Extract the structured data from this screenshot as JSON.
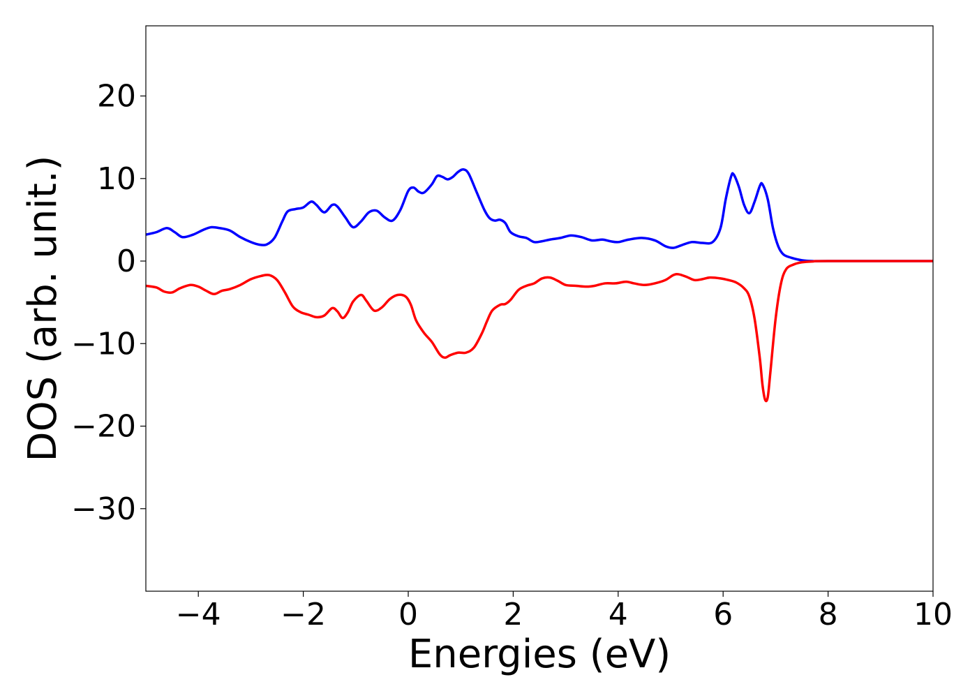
{
  "chart_data": {
    "type": "line",
    "title": "",
    "xlabel": "Energies (eV)",
    "ylabel": "DOS (arb. unit.)",
    "xlim": [
      -5,
      10
    ],
    "ylim": [
      -40,
      28.5
    ],
    "x_ticks": [
      -4,
      -2,
      0,
      2,
      4,
      6,
      8,
      10
    ],
    "y_ticks": [
      -30,
      -20,
      -10,
      0,
      10,
      20
    ],
    "x_tick_labels": [
      "−4",
      "−2",
      "0",
      "2",
      "4",
      "6",
      "8",
      "10"
    ],
    "y_tick_labels": [
      "−30",
      "−20",
      "−10",
      "0",
      "10",
      "20"
    ],
    "grid": false,
    "legend": false,
    "series": [
      {
        "color": "#0000ff",
        "points": [
          [
            -5.0,
            3.2
          ],
          [
            -4.8,
            3.5
          ],
          [
            -4.6,
            4.0
          ],
          [
            -4.45,
            3.5
          ],
          [
            -4.3,
            2.9
          ],
          [
            -4.1,
            3.2
          ],
          [
            -3.9,
            3.8
          ],
          [
            -3.75,
            4.1
          ],
          [
            -3.6,
            4.0
          ],
          [
            -3.4,
            3.7
          ],
          [
            -3.2,
            2.9
          ],
          [
            -3.0,
            2.3
          ],
          [
            -2.85,
            2.0
          ],
          [
            -2.7,
            2.0
          ],
          [
            -2.55,
            2.8
          ],
          [
            -2.4,
            4.8
          ],
          [
            -2.3,
            6.0
          ],
          [
            -2.15,
            6.3
          ],
          [
            -2.0,
            6.5
          ],
          [
            -1.85,
            7.2
          ],
          [
            -1.75,
            6.8
          ],
          [
            -1.6,
            5.9
          ],
          [
            -1.45,
            6.8
          ],
          [
            -1.35,
            6.6
          ],
          [
            -1.2,
            5.3
          ],
          [
            -1.05,
            4.1
          ],
          [
            -0.9,
            4.8
          ],
          [
            -0.75,
            5.9
          ],
          [
            -0.6,
            6.1
          ],
          [
            -0.45,
            5.3
          ],
          [
            -0.3,
            4.9
          ],
          [
            -0.15,
            6.2
          ],
          [
            0.0,
            8.5
          ],
          [
            0.1,
            8.9
          ],
          [
            0.2,
            8.4
          ],
          [
            0.3,
            8.3
          ],
          [
            0.45,
            9.3
          ],
          [
            0.55,
            10.3
          ],
          [
            0.65,
            10.2
          ],
          [
            0.75,
            9.9
          ],
          [
            0.85,
            10.2
          ],
          [
            0.95,
            10.8
          ],
          [
            1.05,
            11.1
          ],
          [
            1.15,
            10.6
          ],
          [
            1.3,
            8.4
          ],
          [
            1.45,
            6.2
          ],
          [
            1.55,
            5.2
          ],
          [
            1.65,
            4.9
          ],
          [
            1.75,
            5.0
          ],
          [
            1.85,
            4.6
          ],
          [
            1.95,
            3.5
          ],
          [
            2.1,
            3.0
          ],
          [
            2.25,
            2.8
          ],
          [
            2.4,
            2.3
          ],
          [
            2.55,
            2.4
          ],
          [
            2.7,
            2.6
          ],
          [
            2.9,
            2.8
          ],
          [
            3.1,
            3.1
          ],
          [
            3.3,
            2.9
          ],
          [
            3.5,
            2.5
          ],
          [
            3.7,
            2.6
          ],
          [
            3.85,
            2.4
          ],
          [
            4.0,
            2.3
          ],
          [
            4.2,
            2.6
          ],
          [
            4.45,
            2.8
          ],
          [
            4.7,
            2.5
          ],
          [
            4.9,
            1.8
          ],
          [
            5.05,
            1.6
          ],
          [
            5.2,
            1.9
          ],
          [
            5.4,
            2.3
          ],
          [
            5.6,
            2.2
          ],
          [
            5.8,
            2.3
          ],
          [
            5.95,
            4.0
          ],
          [
            6.05,
            7.5
          ],
          [
            6.15,
            10.2
          ],
          [
            6.2,
            10.5
          ],
          [
            6.3,
            9.0
          ],
          [
            6.4,
            6.8
          ],
          [
            6.5,
            5.8
          ],
          [
            6.6,
            7.2
          ],
          [
            6.7,
            9.1
          ],
          [
            6.75,
            9.3
          ],
          [
            6.85,
            7.5
          ],
          [
            6.95,
            4.0
          ],
          [
            7.05,
            1.8
          ],
          [
            7.15,
            0.8
          ],
          [
            7.3,
            0.4
          ],
          [
            7.5,
            0.1
          ],
          [
            7.7,
            0.0
          ],
          [
            8.0,
            0.0
          ],
          [
            10.0,
            0.0
          ]
        ]
      },
      {
        "color": "#ff0000",
        "points": [
          [
            -5.0,
            -3.0
          ],
          [
            -4.8,
            -3.2
          ],
          [
            -4.65,
            -3.7
          ],
          [
            -4.5,
            -3.8
          ],
          [
            -4.35,
            -3.3
          ],
          [
            -4.15,
            -2.9
          ],
          [
            -4.0,
            -3.1
          ],
          [
            -3.85,
            -3.6
          ],
          [
            -3.7,
            -4.0
          ],
          [
            -3.55,
            -3.6
          ],
          [
            -3.4,
            -3.4
          ],
          [
            -3.2,
            -2.9
          ],
          [
            -3.0,
            -2.2
          ],
          [
            -2.8,
            -1.8
          ],
          [
            -2.65,
            -1.7
          ],
          [
            -2.5,
            -2.3
          ],
          [
            -2.35,
            -3.8
          ],
          [
            -2.2,
            -5.5
          ],
          [
            -2.05,
            -6.2
          ],
          [
            -1.9,
            -6.5
          ],
          [
            -1.75,
            -6.8
          ],
          [
            -1.6,
            -6.6
          ],
          [
            -1.45,
            -5.7
          ],
          [
            -1.35,
            -6.1
          ],
          [
            -1.25,
            -6.9
          ],
          [
            -1.15,
            -6.2
          ],
          [
            -1.05,
            -4.9
          ],
          [
            -0.9,
            -4.1
          ],
          [
            -0.8,
            -4.8
          ],
          [
            -0.65,
            -6.0
          ],
          [
            -0.5,
            -5.6
          ],
          [
            -0.35,
            -4.6
          ],
          [
            -0.2,
            -4.1
          ],
          [
            -0.05,
            -4.3
          ],
          [
            0.05,
            -5.3
          ],
          [
            0.15,
            -7.2
          ],
          [
            0.3,
            -8.7
          ],
          [
            0.45,
            -9.8
          ],
          [
            0.6,
            -11.3
          ],
          [
            0.7,
            -11.7
          ],
          [
            0.8,
            -11.4
          ],
          [
            0.95,
            -11.1
          ],
          [
            1.1,
            -11.1
          ],
          [
            1.25,
            -10.5
          ],
          [
            1.4,
            -8.8
          ],
          [
            1.5,
            -7.3
          ],
          [
            1.6,
            -6.0
          ],
          [
            1.75,
            -5.3
          ],
          [
            1.85,
            -5.2
          ],
          [
            1.95,
            -4.7
          ],
          [
            2.1,
            -3.5
          ],
          [
            2.25,
            -3.0
          ],
          [
            2.4,
            -2.7
          ],
          [
            2.55,
            -2.1
          ],
          [
            2.7,
            -2.0
          ],
          [
            2.85,
            -2.4
          ],
          [
            3.0,
            -2.9
          ],
          [
            3.2,
            -3.0
          ],
          [
            3.4,
            -3.1
          ],
          [
            3.55,
            -3.0
          ],
          [
            3.75,
            -2.7
          ],
          [
            3.95,
            -2.7
          ],
          [
            4.15,
            -2.5
          ],
          [
            4.3,
            -2.7
          ],
          [
            4.5,
            -2.9
          ],
          [
            4.7,
            -2.7
          ],
          [
            4.9,
            -2.3
          ],
          [
            5.05,
            -1.7
          ],
          [
            5.15,
            -1.6
          ],
          [
            5.3,
            -1.9
          ],
          [
            5.45,
            -2.3
          ],
          [
            5.6,
            -2.2
          ],
          [
            5.75,
            -2.0
          ],
          [
            5.95,
            -2.1
          ],
          [
            6.1,
            -2.3
          ],
          [
            6.25,
            -2.6
          ],
          [
            6.4,
            -3.3
          ],
          [
            6.5,
            -4.3
          ],
          [
            6.6,
            -7.0
          ],
          [
            6.7,
            -11.8
          ],
          [
            6.75,
            -15.0
          ],
          [
            6.8,
            -16.8
          ],
          [
            6.85,
            -16.5
          ],
          [
            6.9,
            -13.5
          ],
          [
            7.0,
            -7.0
          ],
          [
            7.1,
            -2.8
          ],
          [
            7.2,
            -1.0
          ],
          [
            7.35,
            -0.4
          ],
          [
            7.5,
            -0.15
          ],
          [
            7.7,
            -0.05
          ],
          [
            8.0,
            0.0
          ],
          [
            10.0,
            0.0
          ]
        ]
      }
    ]
  }
}
